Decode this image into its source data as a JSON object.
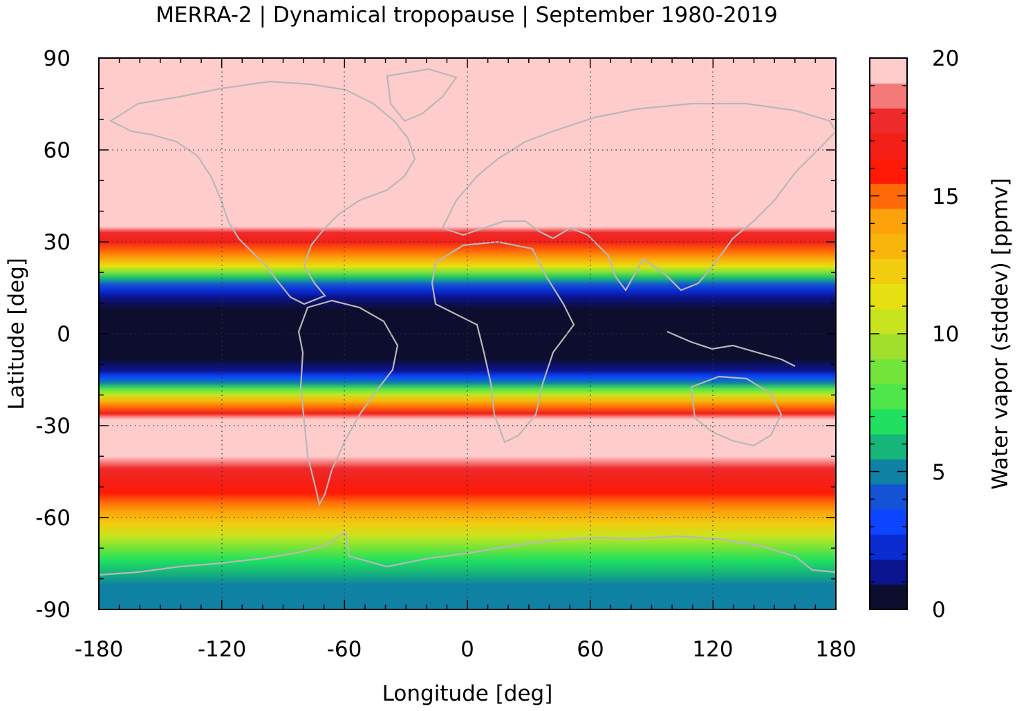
{
  "chart_data": {
    "type": "heatmap",
    "title": "MERRA-2 | Dynamical tropopause | September 1980-2019",
    "xlabel": "Longitude [deg]",
    "ylabel": "Latitude [deg]",
    "colorbar_label": "Water vapor (stddev) [ppmv]",
    "xlim": [
      -180,
      180
    ],
    "ylim": [
      -90,
      90
    ],
    "clim": [
      0,
      20
    ],
    "grid": true,
    "xticks": [
      "-180",
      "-120",
      "-60",
      "0",
      "60",
      "120",
      "180"
    ],
    "yticks": [
      "90",
      "60",
      "30",
      "0",
      "-30",
      "-60",
      "-90"
    ],
    "cticks": [
      "20",
      "15",
      "10",
      "5",
      "0"
    ],
    "colorbar_colors": [
      "#0d0d2e",
      "#0b148f",
      "#0a2cd1",
      "#0c45ff",
      "#1452d6",
      "#0f82a4",
      "#16b57a",
      "#20e060",
      "#4ee64a",
      "#72e43a",
      "#a0e02c",
      "#c8e41e",
      "#e6e012",
      "#f2cc0e",
      "#f8b40a",
      "#fca20a",
      "#ff6a08",
      "#ff1a08",
      "#f42018",
      "#ee2a2a",
      "#f47a7a",
      "#ffcccc"
    ],
    "latitude_profile": {
      "lat": [
        90,
        35,
        33,
        30,
        27,
        24,
        22,
        20,
        18,
        16,
        14,
        12,
        8,
        0,
        -8,
        -12,
        -14,
        -16,
        -18,
        -20,
        -22,
        -24,
        -26,
        -28,
        -40,
        -44,
        -48,
        -52,
        -55,
        -58,
        -62,
        -66,
        -70,
        -74,
        -78,
        -82,
        -86,
        -90
      ],
      "value": [
        20,
        20,
        19,
        18,
        16,
        14,
        12,
        9,
        6,
        4,
        2.5,
        1.5,
        0.5,
        0.5,
        0.5,
        1.5,
        3,
        5,
        8,
        11,
        14,
        16,
        18,
        20,
        20,
        19,
        18,
        17,
        16,
        15,
        13,
        11,
        9,
        7,
        6,
        5,
        5,
        5
      ]
    },
    "overlay": "coastlines (gray)"
  }
}
